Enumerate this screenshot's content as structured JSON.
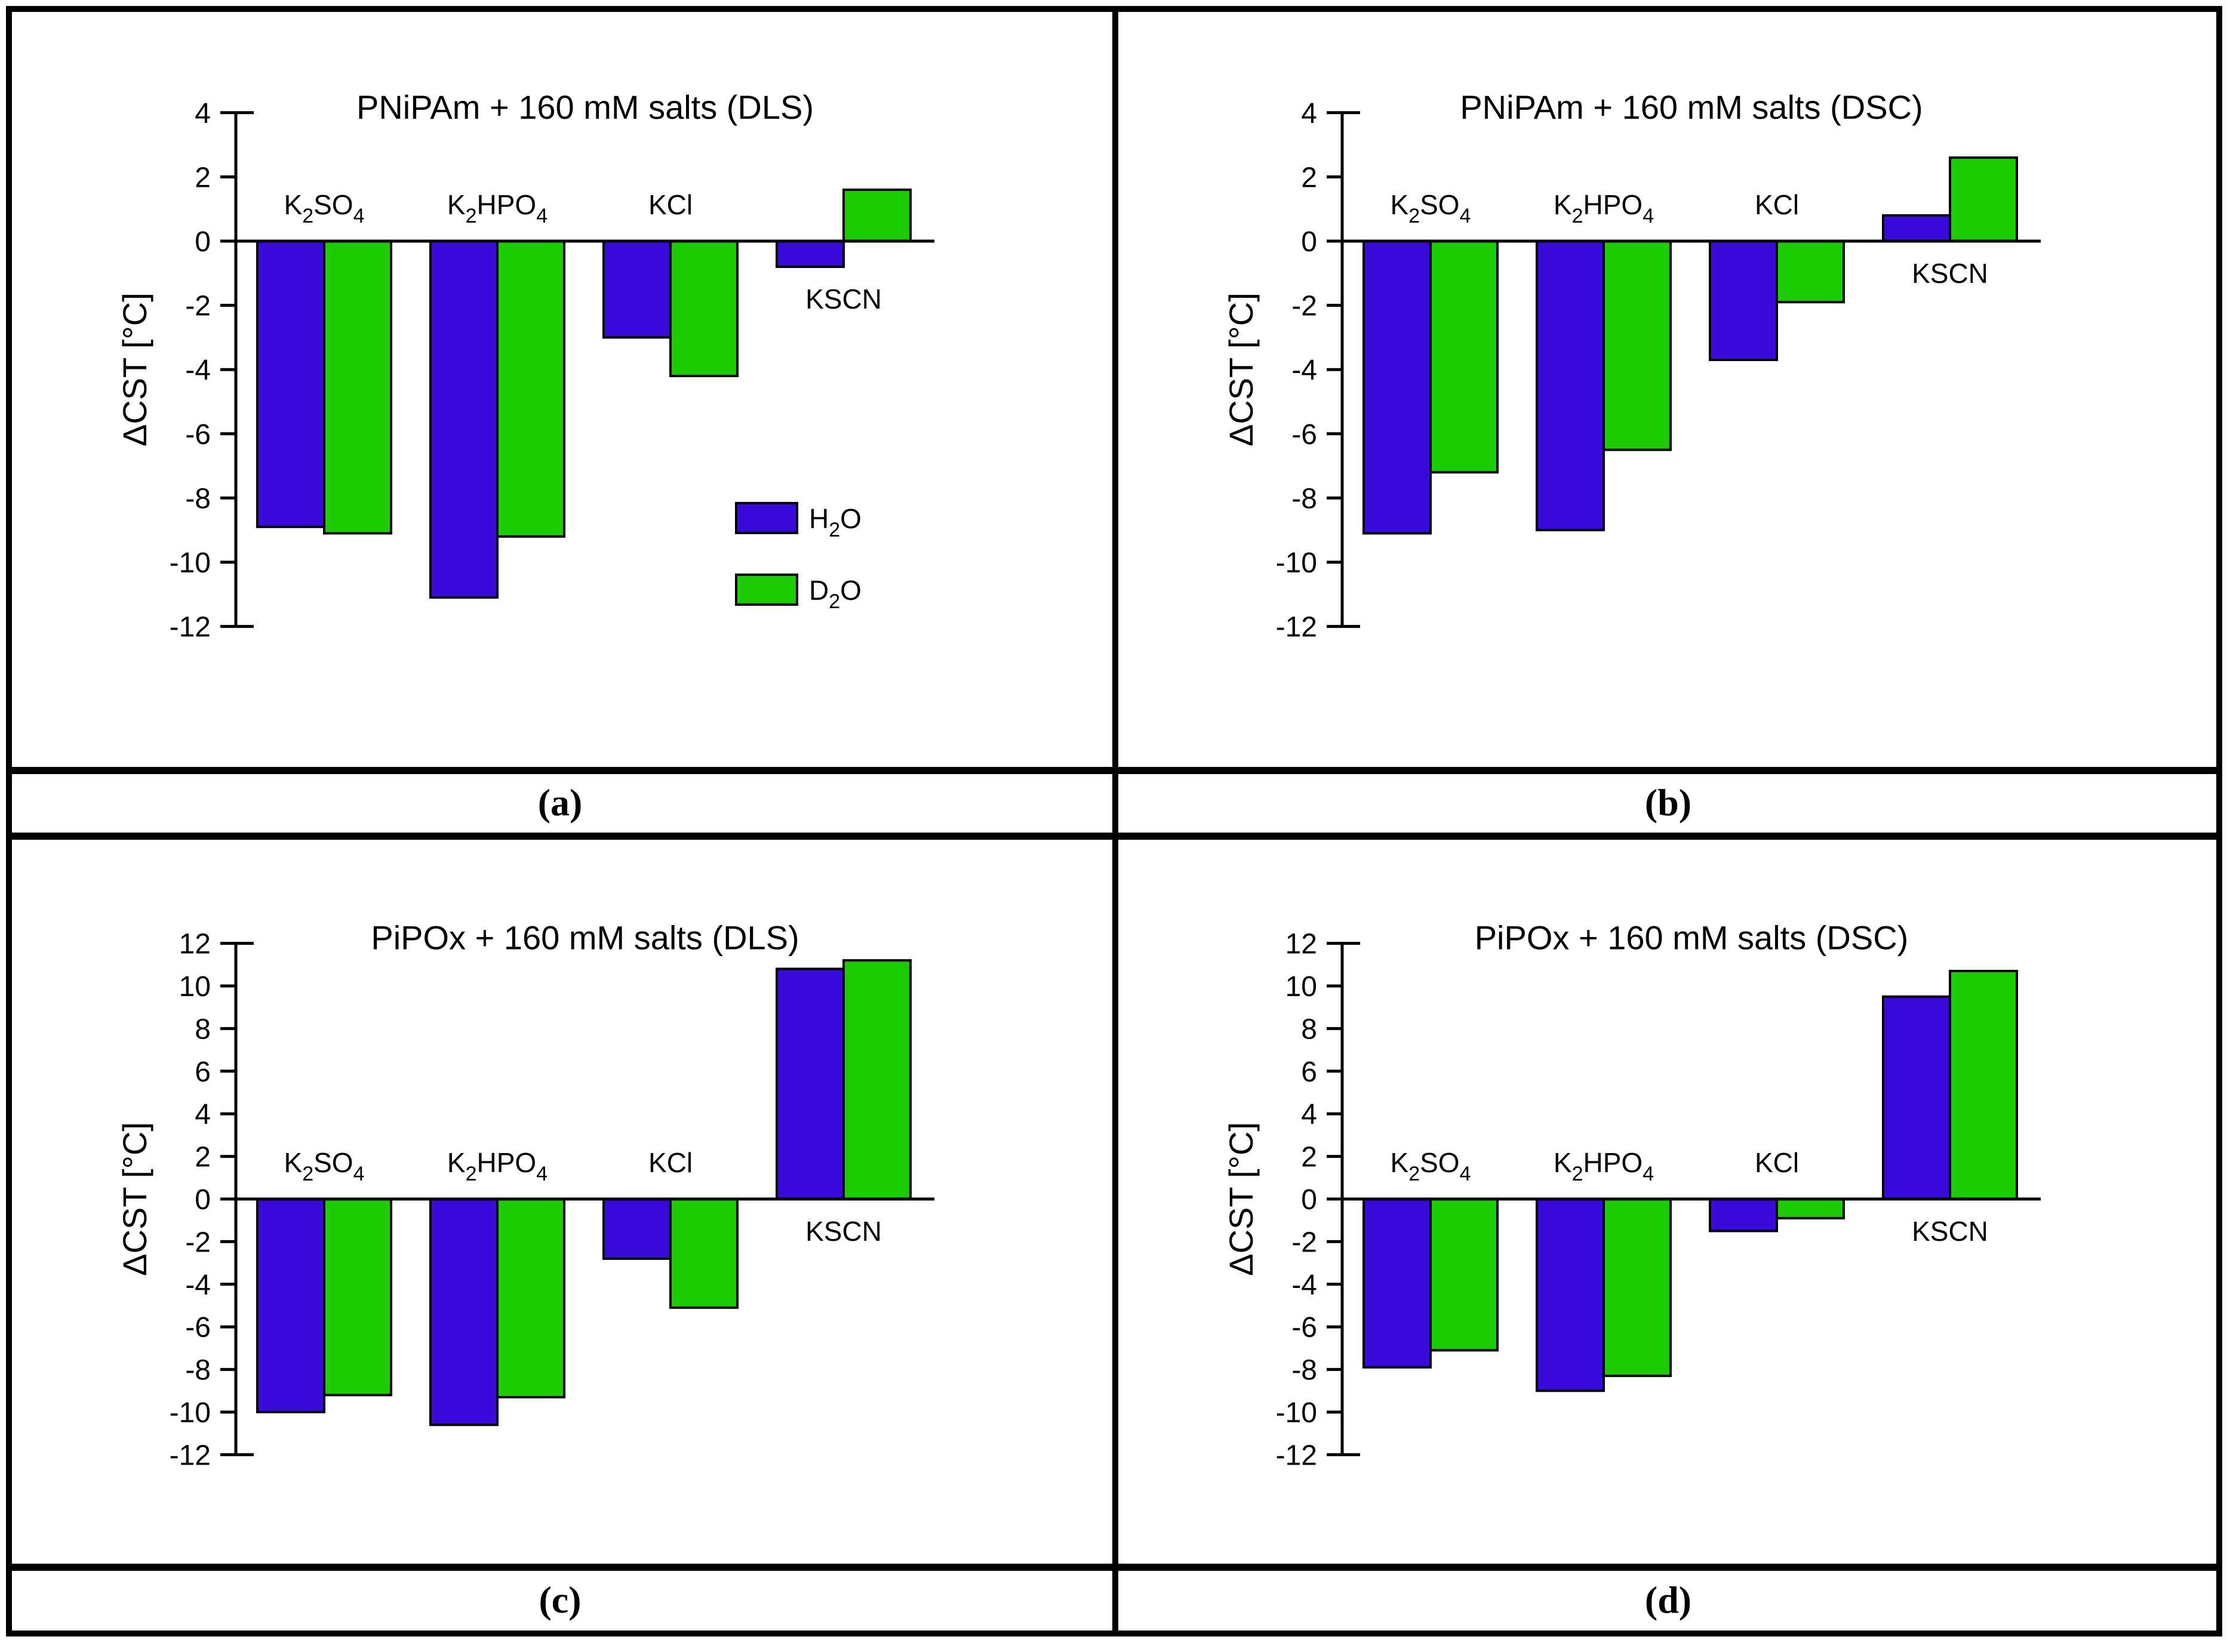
{
  "figure": {
    "background": "#ffffff",
    "border_color": "#000000"
  },
  "colors": {
    "h2o_bar": "#3a0adb",
    "d2o_bar": "#1ccb02",
    "axis": "#000000"
  },
  "chart_data": [
    {
      "type": "bar",
      "panel": "a",
      "caption": "(a)",
      "title": "PNiPAm + 160 mM salts (DLS)",
      "ylabel": "ΔCST [°C]",
      "ylim": [
        -12,
        4
      ],
      "yticks": [
        4,
        2,
        0,
        -2,
        -4,
        -6,
        -8,
        -10,
        -12
      ],
      "grid": false,
      "categories": [
        "K_2SO_4",
        "K_2HPO_4",
        "KCl",
        "KSCN"
      ],
      "category_label_below": [
        false,
        false,
        false,
        true
      ],
      "series": [
        {
          "name": "H_2O",
          "color": "#3a0adb",
          "values": [
            -8.9,
            -11.1,
            -3.0,
            -0.8
          ]
        },
        {
          "name": "D_2O",
          "color": "#1ccb02",
          "values": [
            -9.1,
            -9.2,
            -4.2,
            1.6
          ]
        }
      ],
      "legend": {
        "show": true,
        "entries": [
          "H_2O",
          "D_2O"
        ],
        "position": "lower-right"
      }
    },
    {
      "type": "bar",
      "panel": "b",
      "caption": "(b)",
      "title": "PNiPAm + 160 mM salts (DSC)",
      "ylabel": "ΔCST [°C]",
      "ylim": [
        -12,
        4
      ],
      "yticks": [
        4,
        2,
        0,
        -2,
        -4,
        -6,
        -8,
        -10,
        -12
      ],
      "grid": false,
      "categories": [
        "K_2SO_4",
        "K_2HPO_4",
        "KCl",
        "KSCN"
      ],
      "category_label_below": [
        false,
        false,
        false,
        true
      ],
      "series": [
        {
          "name": "H_2O",
          "color": "#3a0adb",
          "values": [
            -9.1,
            -9.0,
            -3.7,
            0.8
          ]
        },
        {
          "name": "D_2O",
          "color": "#1ccb02",
          "values": [
            -7.2,
            -6.5,
            -1.9,
            2.6
          ]
        }
      ],
      "legend": {
        "show": false,
        "entries": [],
        "position": ""
      }
    },
    {
      "type": "bar",
      "panel": "c",
      "caption": "(c)",
      "title": "PiPOx + 160 mM salts (DLS)",
      "ylabel": "ΔCST [°C]",
      "ylim": [
        -12,
        12
      ],
      "yticks": [
        12,
        10,
        8,
        6,
        4,
        2,
        0,
        -2,
        -4,
        -6,
        -8,
        -10,
        -12
      ],
      "grid": false,
      "categories": [
        "K_2SO_4",
        "K_2HPO_4",
        "KCl",
        "KSCN"
      ],
      "category_label_below": [
        false,
        false,
        false,
        true
      ],
      "series": [
        {
          "name": "H_2O",
          "color": "#3a0adb",
          "values": [
            -10.0,
            -10.6,
            -2.8,
            10.8
          ]
        },
        {
          "name": "D_2O",
          "color": "#1ccb02",
          "values": [
            -9.2,
            -9.3,
            -5.1,
            11.2
          ]
        }
      ],
      "legend": {
        "show": false,
        "entries": [],
        "position": ""
      }
    },
    {
      "type": "bar",
      "panel": "d",
      "caption": "(d)",
      "title": "PiPOx + 160 mM salts (DSC)",
      "ylabel": "ΔCST [°C]",
      "ylim": [
        -12,
        12
      ],
      "yticks": [
        12,
        10,
        8,
        6,
        4,
        2,
        0,
        -2,
        -4,
        -6,
        -8,
        -10,
        -12
      ],
      "grid": false,
      "categories": [
        "K_2SO_4",
        "K_2HPO_4",
        "KCl",
        "KSCN"
      ],
      "category_label_below": [
        false,
        false,
        false,
        true
      ],
      "series": [
        {
          "name": "H_2O",
          "color": "#3a0adb",
          "values": [
            -7.9,
            -9.0,
            -1.5,
            9.5
          ]
        },
        {
          "name": "D_2O",
          "color": "#1ccb02",
          "values": [
            -7.1,
            -8.3,
            -0.9,
            10.7
          ]
        }
      ],
      "legend": {
        "show": false,
        "entries": [],
        "position": ""
      }
    }
  ]
}
